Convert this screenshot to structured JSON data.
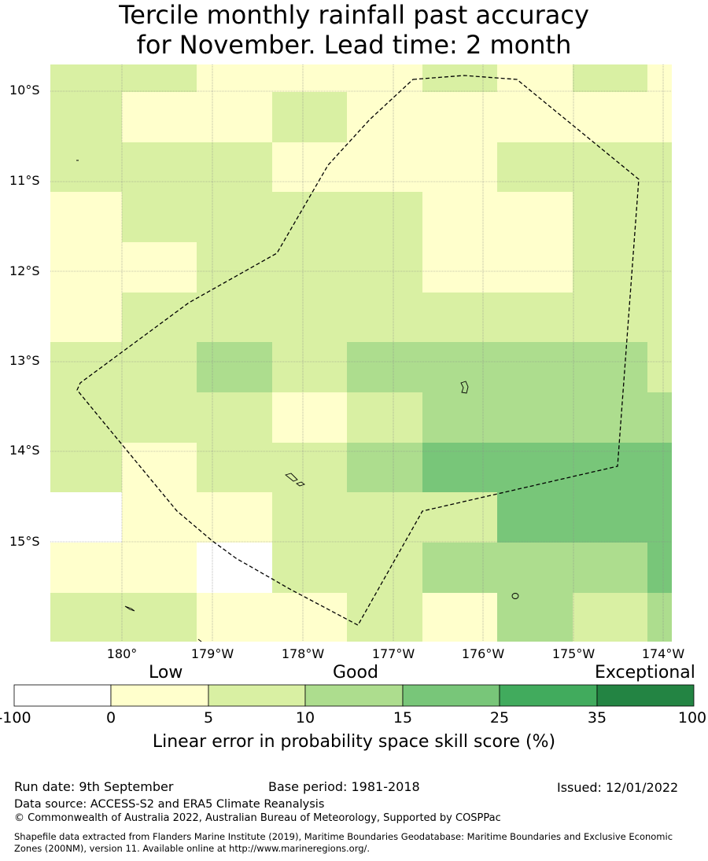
{
  "title": {
    "line1": "Tercile monthly rainfall past accuracy",
    "line2": "for November. Lead time: 2 month"
  },
  "axes": {
    "lat_labels": [
      "10°S",
      "11°S",
      "12°S",
      "13°S",
      "14°S",
      "15°S"
    ],
    "lon_labels": [
      "180°",
      "179°W",
      "178°W",
      "177°W",
      "176°W",
      "175°W",
      "174°W"
    ]
  },
  "legend": {
    "categories": [
      "Low",
      "Good",
      "Exceptional"
    ],
    "ticks": [
      "-100",
      "0",
      "5",
      "10",
      "15",
      "25",
      "35",
      "100"
    ],
    "colors": [
      "#ffffff",
      "#ffffcc",
      "#d9f0a3",
      "#addd8e",
      "#78c679",
      "#41ab5d",
      "#238443"
    ],
    "title": "Linear error in probability space skill score (%)"
  },
  "map_grid": {
    "note_values": "skill class index per cell: 0=-100..0, 1=0..5, 2=5..10, 3=10..15, 4=15..25",
    "rows": [
      [
        2,
        2,
        1,
        1,
        1,
        2,
        1,
        2,
        1
      ],
      [
        2,
        1,
        1,
        2,
        1,
        1,
        1,
        1,
        1
      ],
      [
        2,
        2,
        2,
        1,
        1,
        1,
        2,
        2,
        2
      ],
      [
        1,
        2,
        2,
        2,
        2,
        1,
        1,
        2,
        2
      ],
      [
        1,
        1,
        2,
        2,
        2,
        1,
        1,
        2,
        2
      ],
      [
        1,
        2,
        2,
        2,
        2,
        2,
        2,
        2,
        2
      ],
      [
        2,
        2,
        3,
        2,
        3,
        3,
        3,
        3,
        2
      ],
      [
        2,
        2,
        2,
        1,
        2,
        3,
        3,
        3,
        3
      ],
      [
        2,
        1,
        2,
        2,
        3,
        4,
        4,
        4,
        4
      ],
      [
        0,
        1,
        1,
        2,
        2,
        2,
        4,
        4,
        4
      ],
      [
        1,
        1,
        0,
        2,
        2,
        3,
        3,
        3,
        4
      ],
      [
        2,
        2,
        1,
        1,
        2,
        1,
        3,
        2,
        3
      ]
    ]
  },
  "meta": {
    "run_date": "Run date: 9th September",
    "base_period": "Base period: 1981-2018",
    "issued": "Issued: 12/01/2022",
    "data_source": "Data source: ACCESS-S2 and ERA5 Climate Reanalysis",
    "copyright": "© Commonwealth of Australia 2022, Australian Bureau of Meteorology, Supported by COSPPac",
    "shapefile_line1": "Shapefile data extracted from Flanders Marine Institute (2019), Maritime Boundaries Geodatabase: Maritime Boundaries and Exclusive Economic",
    "shapefile_line2": "Zones (200NM), version 11. Available online at http://www.marineregions.org/."
  }
}
